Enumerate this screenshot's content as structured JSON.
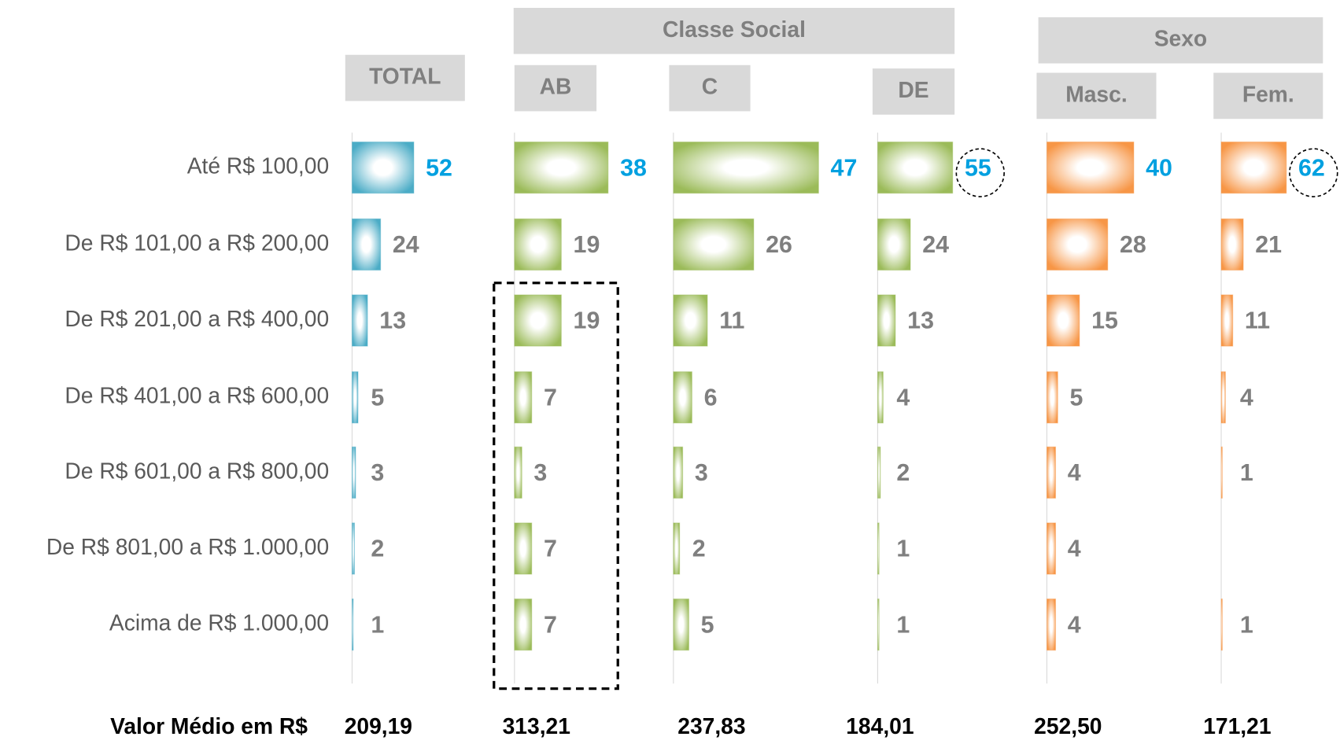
{
  "chart_data": {
    "type": "bar",
    "categories": [
      "Até R$ 100,00",
      "De R$ 101,00 a R$ 200,00",
      "De R$ 201,00 a R$ 400,00",
      "De R$ 401,00 a R$ 600,00",
      "De R$ 601,00 a R$ 800,00",
      "De R$ 801,00 a R$ 1.000,00",
      "Acima de R$ 1.000,00"
    ],
    "series": [
      {
        "name": "TOTAL",
        "color": "#4bacc6",
        "values": [
          52,
          24,
          13,
          5,
          3,
          2,
          1
        ],
        "xlim": [
          0,
          108
        ],
        "average": "209,19"
      }
    ],
    "groups": [
      {
        "name": "Classe Social",
        "series": [
          {
            "name": "AB",
            "color": "#9bbb59",
            "values": [
              38,
              19,
              19,
              7,
              3,
              7,
              7
            ],
            "xlim": [
              0,
              52
            ],
            "average": "313,21"
          },
          {
            "name": "C",
            "color": "#9bbb59",
            "values": [
              47,
              26,
              11,
              6,
              3,
              2,
              5
            ],
            "xlim": [
              0,
              41.5
            ],
            "average": "237,83"
          },
          {
            "name": "DE",
            "color": "#9bbb59",
            "values": [
              55,
              24,
              13,
              4,
              2,
              1,
              1
            ],
            "xlim": [
              0,
              94
            ],
            "average": "184,01"
          }
        ]
      },
      {
        "name": "Sexo",
        "series": [
          {
            "name": "Masc.",
            "color": "#f79646",
            "values": [
              40,
              28,
              15,
              5,
              4,
              4,
              4
            ],
            "xlim": [
              0,
              59
            ],
            "average": "252,50"
          },
          {
            "name": "Fem.",
            "color": "#f79646",
            "values": [
              62,
              21,
              11,
              4,
              1,
              null,
              1
            ],
            "xlim": [
              0,
              122
            ],
            "average": "171,21"
          }
        ]
      }
    ],
    "summary_label": "Valor Médio em R$",
    "label_color": "#7f7f7f",
    "highlight_label_color": "#00a0e0"
  }
}
